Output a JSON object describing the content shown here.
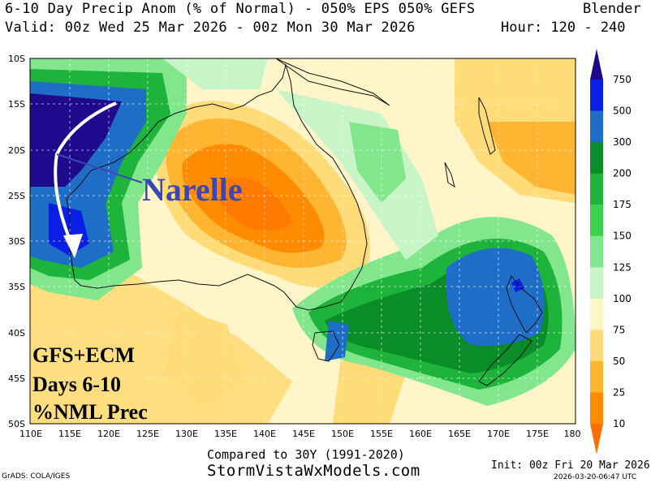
{
  "header": {
    "title": "6-10 Day Precip Anom (% of Normal) - 050% EPS 050% GEFS",
    "model": "Blender",
    "valid": "Valid: 00z Wed 25 Mar 2026 - 00z Mon 30 Mar 2026",
    "hours": "Hour: 120 - 240"
  },
  "axes": {
    "lat_labels": [
      "10S",
      "15S",
      "20S",
      "25S",
      "30S",
      "35S",
      "40S",
      "45S",
      "50S"
    ],
    "lon_labels": [
      "110E",
      "115E",
      "120E",
      "125E",
      "130E",
      "135E",
      "140E",
      "145E",
      "150E",
      "155E",
      "160E",
      "165E",
      "170E",
      "175E",
      "180"
    ]
  },
  "legend": {
    "labels": [
      "750",
      "500",
      "300",
      "200",
      "175",
      "150",
      "125",
      "100",
      "75",
      "50",
      "25",
      "10"
    ],
    "colors": [
      "#1e0a8c",
      "#0a1ee6",
      "#1e6ec8",
      "#0a8c28",
      "#1eb43c",
      "#3cd250",
      "#82e68c",
      "#c8f5c8",
      "#fff5c8",
      "#ffdc78",
      "#ffb432",
      "#ff8c00",
      "#ff6e00"
    ]
  },
  "annotations": {
    "storm_name": "Narelle",
    "box_line1": "GFS+ECM",
    "box_line2": "Days 6-10",
    "box_line3": "%NML Prec"
  },
  "footer": {
    "compared": "Compared to 30Y (1991-2020)",
    "site": "StormVistaWxModels.com",
    "init": "Init: 00z Fri 20 Mar 2026",
    "grads": "GrADS: COLA/IGES",
    "stamp": "2026-03-20-06:47 UTC"
  }
}
